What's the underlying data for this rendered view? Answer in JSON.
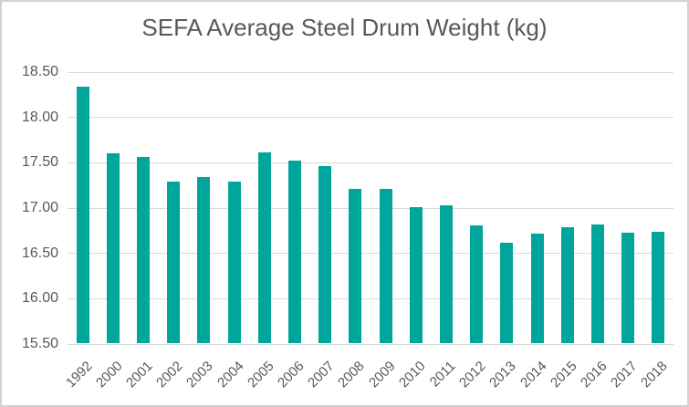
{
  "window": {
    "background_color": "#ffffff",
    "border_color": "#d2d2d2"
  },
  "chart_data": {
    "type": "bar",
    "title": "SEFA Average Steel Drum Weight (kg)",
    "xlabel": "",
    "ylabel": "",
    "categories": [
      "1992",
      "2000",
      "2001",
      "2002",
      "2003",
      "2004",
      "2005",
      "2006",
      "2007",
      "2008",
      "2009",
      "2010",
      "2011",
      "2012",
      "2013",
      "2014",
      "2015",
      "2016",
      "2017",
      "2018"
    ],
    "values": [
      18.33,
      17.59,
      17.55,
      17.28,
      17.33,
      17.28,
      17.6,
      17.51,
      17.45,
      17.2,
      17.2,
      17.0,
      17.02,
      16.8,
      16.61,
      16.71,
      16.78,
      16.81,
      16.72,
      16.73
    ],
    "ylim": [
      15.5,
      18.5
    ],
    "ytick_step": 0.5,
    "yticks": [
      "18.50",
      "18.00",
      "17.50",
      "17.00",
      "16.50",
      "16.00",
      "15.50"
    ],
    "grid": true,
    "legend": false,
    "x_labels_rotation_deg": 45,
    "bar_color": "#00a69b",
    "gridline_color": "#d9d9d9",
    "text_color": "#595959",
    "title_color": "#595959"
  }
}
